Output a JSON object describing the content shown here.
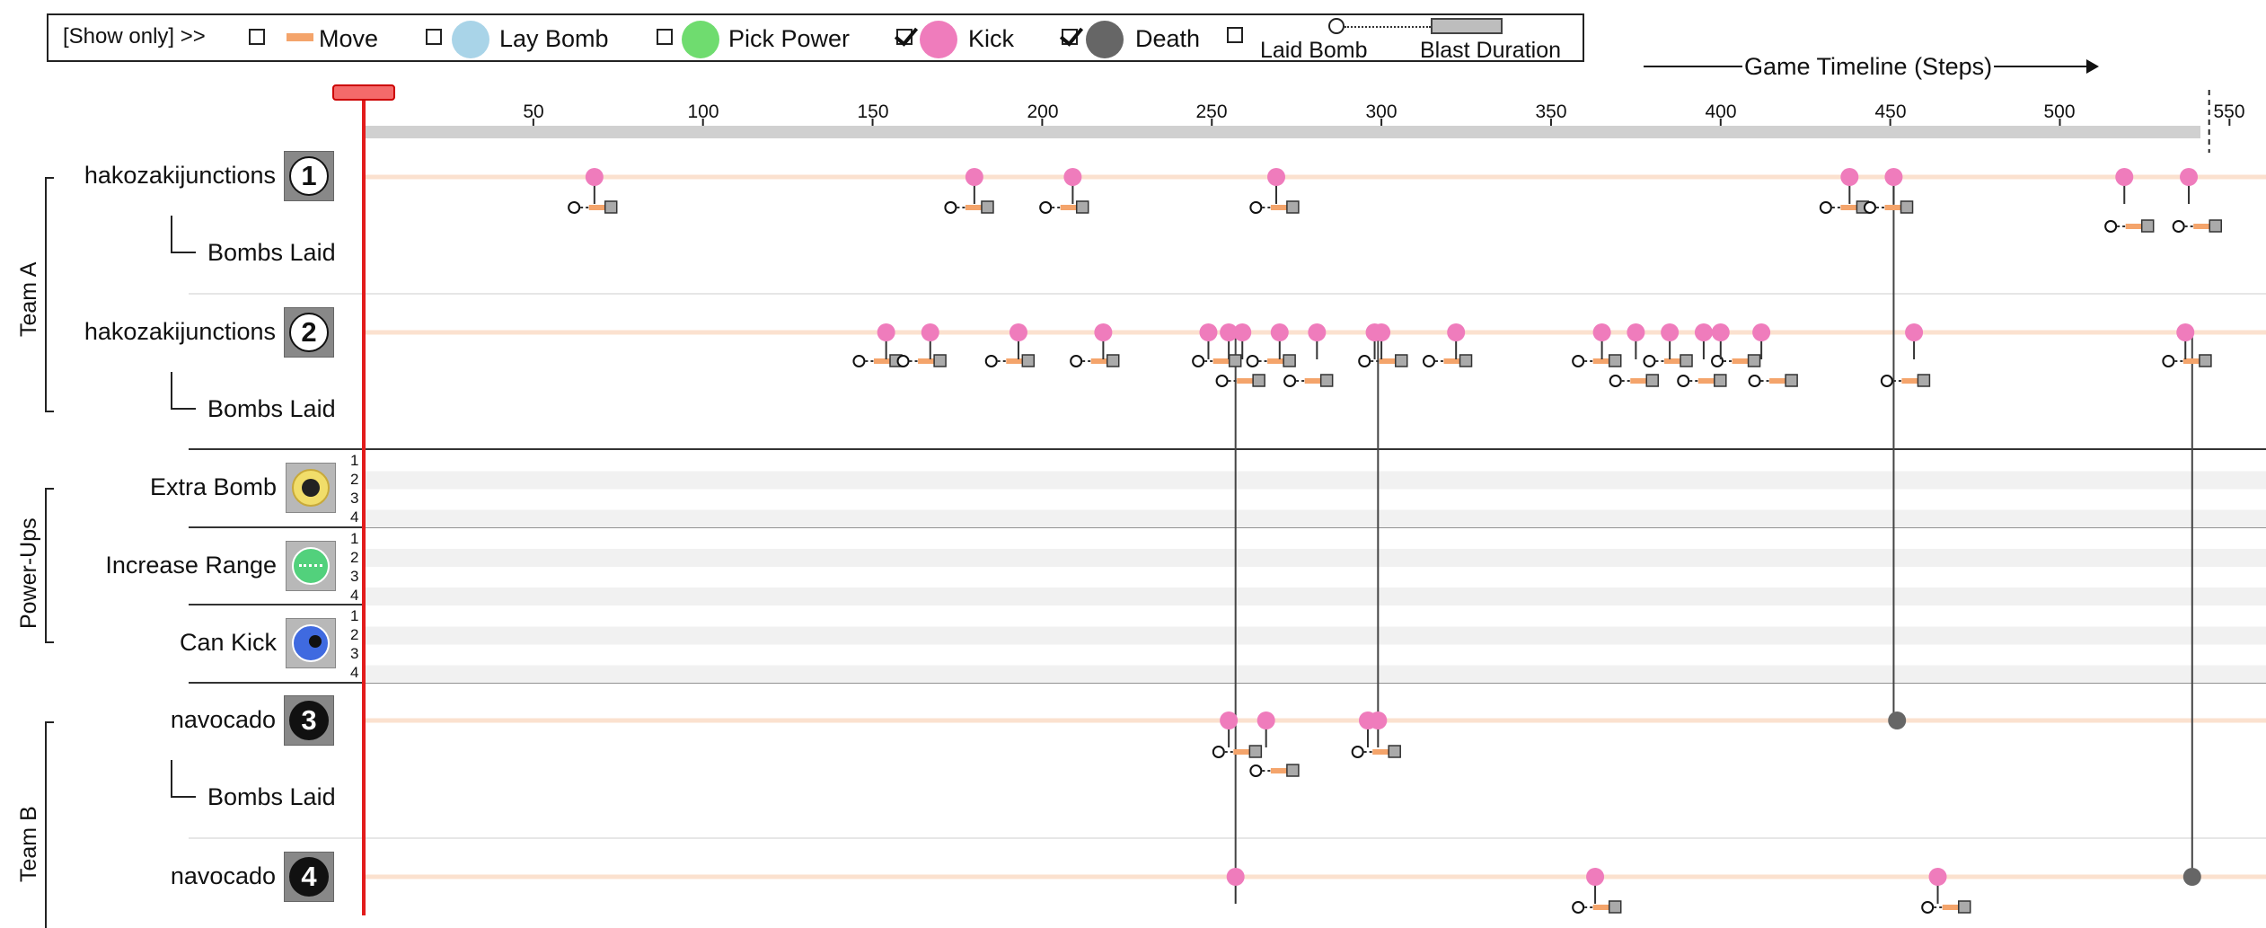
{
  "legend": {
    "show_only": "[Show only] >>",
    "items": [
      {
        "key": "move",
        "label": "Move",
        "checked": false,
        "color": "#f4a46b"
      },
      {
        "key": "lay_bomb",
        "label": "Lay Bomb",
        "checked": false,
        "color": "#a9d4e8"
      },
      {
        "key": "pick_power",
        "label": "Pick Power",
        "checked": false,
        "color": "#6fdc6f"
      },
      {
        "key": "kick",
        "label": "Kick",
        "checked": true,
        "color": "#ef7cbc"
      },
      {
        "key": "death",
        "label": "Death",
        "checked": true,
        "color": "#666666"
      }
    ],
    "bomb_checked": false,
    "laid_bomb": "Laid Bomb",
    "blast_duration": "Blast Duration"
  },
  "timeline_title": "Game Timeline (Steps)",
  "current_step": 0,
  "chart_data": {
    "type": "scatter",
    "title": "",
    "xlabel": "Game Timeline (Steps)",
    "xlim": [
      0,
      555
    ],
    "x_ticks": [
      50,
      100,
      150,
      200,
      250,
      300,
      350,
      400,
      450,
      500,
      550
    ],
    "groups": [
      {
        "label": "Team A"
      },
      {
        "label": "Power-Ups"
      },
      {
        "label": "Team B"
      }
    ],
    "agents": [
      {
        "id": 1,
        "name": "hakozakijunctions",
        "team": "Team A",
        "sub_label": "Bombs Laid",
        "kick_steps": [
          68,
          180,
          209,
          269,
          438,
          451,
          519,
          538
        ],
        "bombs": [
          {
            "laid": 62,
            "end": 73,
            "lane": 0
          },
          {
            "laid": 173,
            "end": 184,
            "lane": 0
          },
          {
            "laid": 201,
            "end": 212,
            "lane": 0
          },
          {
            "laid": 263,
            "end": 274,
            "lane": 0
          },
          {
            "laid": 431,
            "end": 442,
            "lane": 0
          },
          {
            "laid": 444,
            "end": 455,
            "lane": 0
          },
          {
            "laid": 515,
            "end": 526,
            "lane": 1
          },
          {
            "laid": 535,
            "end": 546,
            "lane": 1
          }
        ],
        "death_step": null
      },
      {
        "id": 2,
        "name": "hakozakijunctions",
        "team": "Team A",
        "sub_label": "Bombs Laid",
        "kick_steps": [
          154,
          167,
          193,
          218,
          249,
          255,
          259,
          270,
          281,
          298,
          300,
          322,
          365,
          375,
          385,
          395,
          400,
          412,
          457,
          537
        ],
        "bombs": [
          {
            "laid": 146,
            "end": 157,
            "lane": 0
          },
          {
            "laid": 159,
            "end": 170,
            "lane": 0
          },
          {
            "laid": 185,
            "end": 196,
            "lane": 0
          },
          {
            "laid": 210,
            "end": 221,
            "lane": 0
          },
          {
            "laid": 246,
            "end": 257,
            "lane": 0
          },
          {
            "laid": 253,
            "end": 264,
            "lane": 1
          },
          {
            "laid": 262,
            "end": 273,
            "lane": 0
          },
          {
            "laid": 273,
            "end": 284,
            "lane": 1
          },
          {
            "laid": 295,
            "end": 306,
            "lane": 0
          },
          {
            "laid": 314,
            "end": 325,
            "lane": 0
          },
          {
            "laid": 358,
            "end": 369,
            "lane": 0
          },
          {
            "laid": 369,
            "end": 380,
            "lane": 1
          },
          {
            "laid": 379,
            "end": 390,
            "lane": 0
          },
          {
            "laid": 389,
            "end": 400,
            "lane": 1
          },
          {
            "laid": 399,
            "end": 410,
            "lane": 0
          },
          {
            "laid": 410,
            "end": 421,
            "lane": 1
          },
          {
            "laid": 449,
            "end": 460,
            "lane": 1
          },
          {
            "laid": 532,
            "end": 543,
            "lane": 0
          }
        ],
        "death_step": null
      },
      {
        "id": 3,
        "name": "navocado",
        "team": "Team B",
        "sub_label": "Bombs Laid",
        "kick_steps": [
          255,
          266,
          296,
          299
        ],
        "bombs": [
          {
            "laid": 252,
            "end": 263,
            "lane": 0
          },
          {
            "laid": 263,
            "end": 274,
            "lane": 1
          },
          {
            "laid": 293,
            "end": 304,
            "lane": 0
          }
        ],
        "death_step": 452
      },
      {
        "id": 4,
        "name": "navocado",
        "team": "Team B",
        "sub_label": "",
        "kick_steps": [
          257,
          363,
          464
        ],
        "bombs": [
          {
            "laid": 358,
            "end": 369,
            "lane": 0
          },
          {
            "laid": 461,
            "end": 472,
            "lane": 0
          }
        ],
        "death_step": 539
      }
    ],
    "kick_links": [
      {
        "step": 451,
        "from_agent": 1,
        "to_agent": 3
      },
      {
        "step": 257,
        "from_agent": 2,
        "to_agent": 4
      },
      {
        "step": 299,
        "from_agent": 2,
        "to_agent": 3
      },
      {
        "step": 539,
        "from_agent": 2,
        "to_agent": 4
      }
    ],
    "powerups": [
      {
        "name": "Extra Bomb",
        "levels": [
          "1",
          "2",
          "3",
          "4"
        ],
        "icon": "extra-bomb-icon",
        "color": "#f1dd6a"
      },
      {
        "name": "Increase Range",
        "levels": [
          "1",
          "2",
          "3",
          "4"
        ],
        "icon": "increase-range-icon",
        "color": "#52d17c"
      },
      {
        "name": "Can Kick",
        "levels": [
          "1",
          "2",
          "3",
          "4"
        ],
        "icon": "can-kick-icon",
        "color": "#3f6ae0"
      }
    ]
  }
}
